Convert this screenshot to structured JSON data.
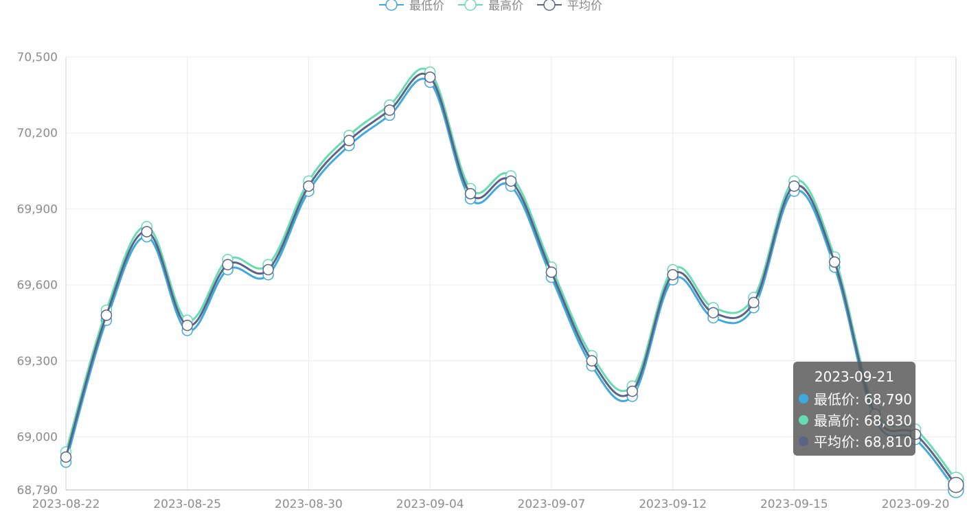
{
  "colors": {
    "min": "#3ea9df",
    "max": "#66dcb3",
    "avg": "#5b6486",
    "grid": "#ececec",
    "axis_text": "#8c8c8c"
  },
  "legend": [
    {
      "name": "最低价",
      "color_key": "min"
    },
    {
      "name": "最高价",
      "color_key": "max"
    },
    {
      "name": "平均价",
      "color_key": "avg"
    }
  ],
  "tooltip": {
    "date": "2023-09-21",
    "rows": [
      {
        "label": "最低价: 68,790",
        "color_key": "min"
      },
      {
        "label": "最高价: 68,830",
        "color_key": "max"
      },
      {
        "label": "平均价: 68,810",
        "color_key": "avg"
      }
    ]
  },
  "chart_data": {
    "type": "line",
    "smooth": true,
    "grid": true,
    "legend_position": "top-center",
    "ylim": [
      68790,
      70500
    ],
    "yticks": [
      "68,790",
      "69,000",
      "69,300",
      "69,600",
      "69,900",
      "70,200",
      "70,500"
    ],
    "ytick_values": [
      68790,
      69000,
      69300,
      69600,
      69900,
      70200,
      70500
    ],
    "x": [
      "2023-08-22",
      "2023-08-23",
      "2023-08-24",
      "2023-08-25",
      "2023-08-28",
      "2023-08-29",
      "2023-08-30",
      "2023-08-31",
      "2023-09-01",
      "2023-09-04",
      "2023-09-05",
      "2023-09-06",
      "2023-09-07",
      "2023-09-08",
      "2023-09-11",
      "2023-09-12",
      "2023-09-13",
      "2023-09-14",
      "2023-09-15",
      "2023-09-18",
      "2023-09-19",
      "2023-09-20",
      "2023-09-21"
    ],
    "xticks_shown": [
      "2023-08-22",
      "2023-08-25",
      "2023-08-30",
      "2023-09-04",
      "2023-09-07",
      "2023-09-12",
      "2023-09-15",
      "2023-09-20"
    ],
    "series": [
      {
        "name": "最低价",
        "color_key": "min",
        "values": [
          68900,
          69460,
          69790,
          69420,
          69660,
          69640,
          69970,
          70150,
          70270,
          70400,
          69940,
          69990,
          69630,
          69280,
          69160,
          69620,
          69470,
          69510,
          69970,
          69670,
          69070,
          68990,
          68790
        ]
      },
      {
        "name": "最高价",
        "color_key": "max",
        "values": [
          68940,
          69500,
          69830,
          69460,
          69700,
          69680,
          70010,
          70190,
          70310,
          70440,
          69980,
          70030,
          69670,
          69320,
          69200,
          69660,
          69510,
          69550,
          70010,
          69710,
          69110,
          69030,
          68830
        ]
      },
      {
        "name": "平均价",
        "color_key": "avg",
        "values": [
          68920,
          69480,
          69810,
          69440,
          69680,
          69660,
          69990,
          70170,
          70290,
          70420,
          69960,
          70010,
          69650,
          69300,
          69180,
          69640,
          69490,
          69530,
          69990,
          69690,
          69090,
          69010,
          68810
        ]
      }
    ]
  }
}
